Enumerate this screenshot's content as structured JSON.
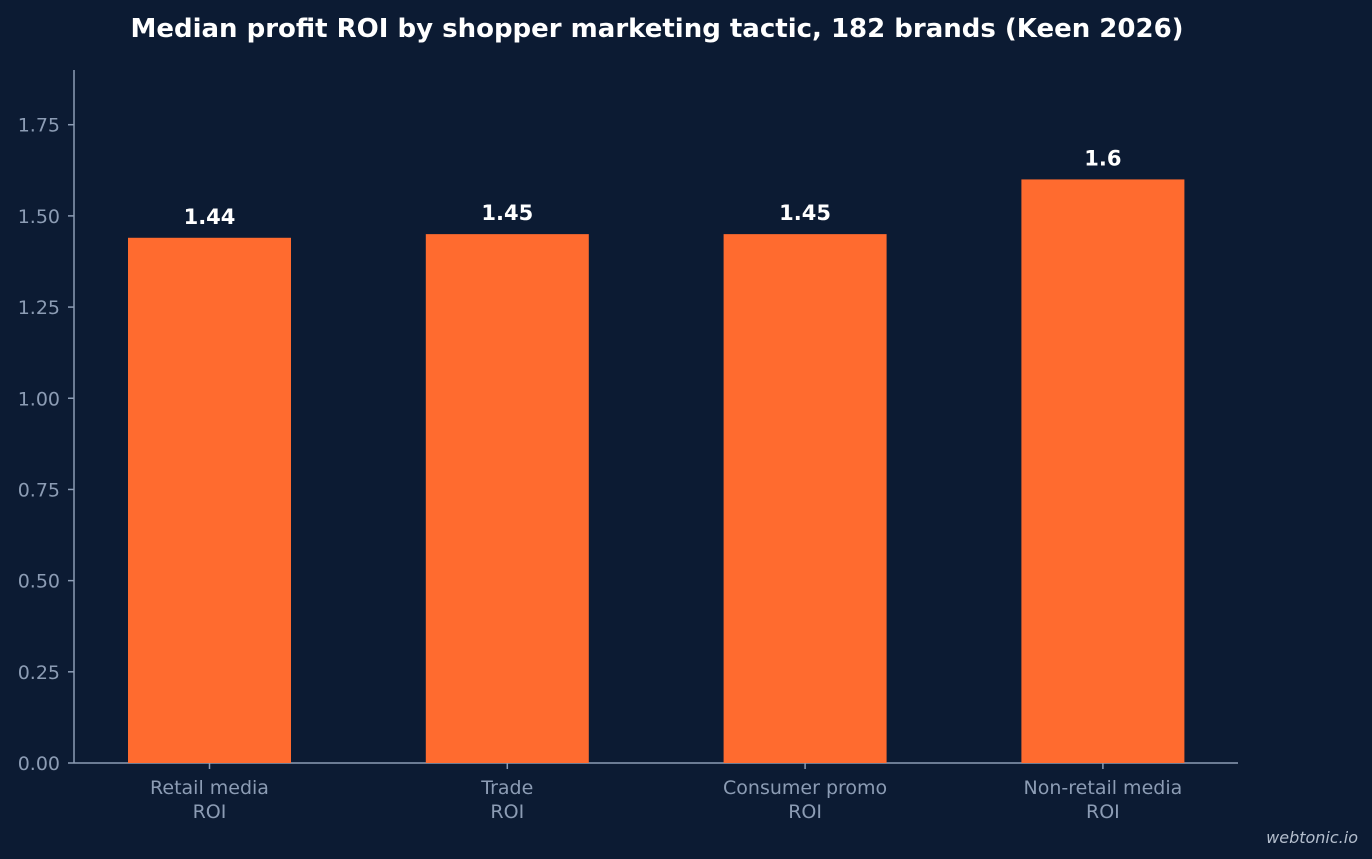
{
  "chart_data": {
    "type": "bar",
    "title": "Median profit ROI by shopper marketing tactic, 182 brands (Keen 2026)",
    "xlabel": "",
    "ylabel": "",
    "categories": [
      [
        "Retail media",
        "ROI"
      ],
      [
        "Trade",
        "ROI"
      ],
      [
        "Consumer promo",
        "ROI"
      ],
      [
        "Non-retail media",
        "ROI"
      ]
    ],
    "values": [
      1.44,
      1.45,
      1.45,
      1.6
    ],
    "value_labels": [
      "1.44",
      "1.45",
      "1.45",
      "1.6"
    ],
    "ylim": [
      0,
      1.9
    ],
    "yticks": [
      0,
      0.25,
      0.5,
      0.75,
      1.0,
      1.25,
      1.5,
      1.75
    ],
    "ytick_labels": [
      "0.00",
      "0.25",
      "0.50",
      "0.75",
      "1.00",
      "1.25",
      "1.50",
      "1.75"
    ],
    "grid": false,
    "legend": "none",
    "colors": {
      "background": "#0c1b33",
      "bar": "#ff6b2f",
      "axis": "#8c9cb4",
      "tick_text": "#8c9cb4",
      "value_text": "#ffffff",
      "title_text": "#ffffff"
    }
  },
  "watermark": "webtonic.io"
}
